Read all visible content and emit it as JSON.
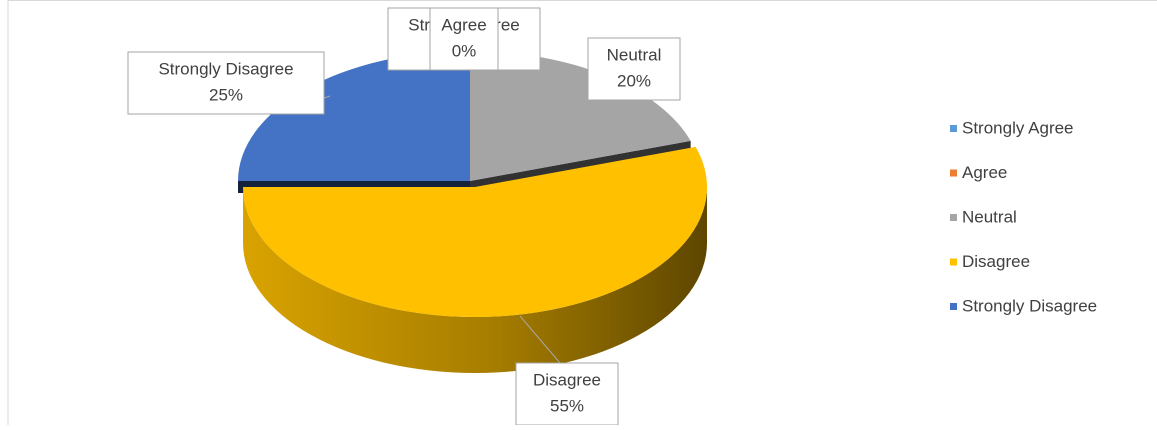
{
  "chart_data": {
    "type": "pie3d",
    "categories": [
      "Strongly Agree",
      "Agree",
      "Neutral",
      "Disagree",
      "Strongly Disagree"
    ],
    "values": [
      0,
      0,
      20,
      55,
      25
    ],
    "value_labels": [
      "0%",
      "0%",
      "20%",
      "55%",
      "25%"
    ],
    "colors": [
      "#5b9bd5",
      "#ed7d31",
      "#a5a5a5",
      "#ffc000",
      "#4472c4"
    ],
    "legend": "right"
  }
}
